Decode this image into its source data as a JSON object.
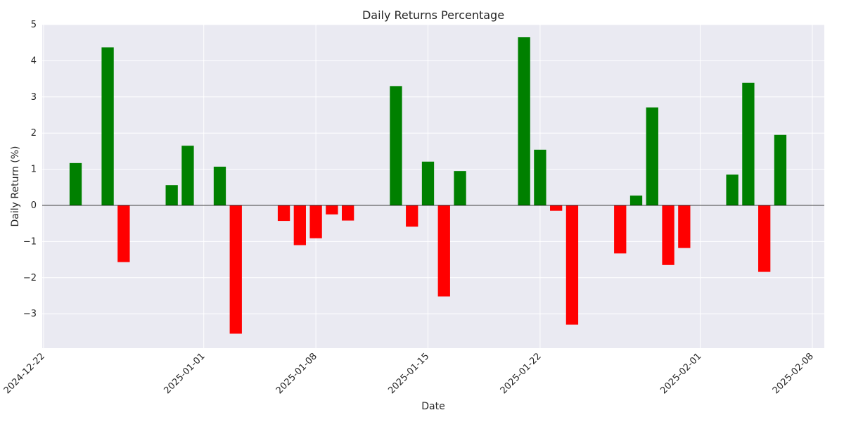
{
  "chart_data": {
    "type": "bar",
    "title": "Daily Returns Percentage",
    "xlabel": "Date",
    "ylabel": "Daily Return (%)",
    "x_is_date": true,
    "xlim": [
      "2024-12-22",
      "2025-02-08"
    ],
    "ylim": [
      -3.95,
      5.0
    ],
    "yticks": [
      -3,
      -2,
      -1,
      0,
      1,
      2,
      3,
      4,
      5
    ],
    "xticks": [
      "2024-12-22",
      "2025-01-01",
      "2025-01-08",
      "2025-01-15",
      "2025-01-22",
      "2025-02-01",
      "2025-02-08"
    ],
    "grid": true,
    "zero_line": true,
    "colors": {
      "positive": "#008000",
      "negative": "#ff0000",
      "plot_bg": "#eaeaf2",
      "grid": "#ffffff"
    },
    "points": [
      {
        "date": "2024-12-24",
        "value": 1.17
      },
      {
        "date": "2024-12-26",
        "value": 4.37
      },
      {
        "date": "2024-12-27",
        "value": -1.57
      },
      {
        "date": "2024-12-30",
        "value": 0.56
      },
      {
        "date": "2024-12-31",
        "value": 1.65
      },
      {
        "date": "2025-01-02",
        "value": 1.07
      },
      {
        "date": "2025-01-03",
        "value": -3.55
      },
      {
        "date": "2025-01-06",
        "value": -0.43
      },
      {
        "date": "2025-01-07",
        "value": -1.1
      },
      {
        "date": "2025-01-08",
        "value": -0.91
      },
      {
        "date": "2025-01-09",
        "value": -0.25
      },
      {
        "date": "2025-01-10",
        "value": -0.42
      },
      {
        "date": "2025-01-13",
        "value": 3.3
      },
      {
        "date": "2025-01-14",
        "value": -0.59
      },
      {
        "date": "2025-01-15",
        "value": 1.21
      },
      {
        "date": "2025-01-16",
        "value": -2.52
      },
      {
        "date": "2025-01-17",
        "value": 0.95
      },
      {
        "date": "2025-01-21",
        "value": 4.65
      },
      {
        "date": "2025-01-22",
        "value": 1.54
      },
      {
        "date": "2025-01-23",
        "value": -0.15
      },
      {
        "date": "2025-01-24",
        "value": -3.3
      },
      {
        "date": "2025-01-27",
        "value": -1.33
      },
      {
        "date": "2025-01-28",
        "value": 0.27
      },
      {
        "date": "2025-01-29",
        "value": 2.71
      },
      {
        "date": "2025-01-30",
        "value": -1.65
      },
      {
        "date": "2025-01-31",
        "value": -1.18
      },
      {
        "date": "2025-02-03",
        "value": 0.85
      },
      {
        "date": "2025-02-04",
        "value": 3.39
      },
      {
        "date": "2025-02-05",
        "value": -1.84
      },
      {
        "date": "2025-02-06",
        "value": 1.95
      }
    ]
  }
}
